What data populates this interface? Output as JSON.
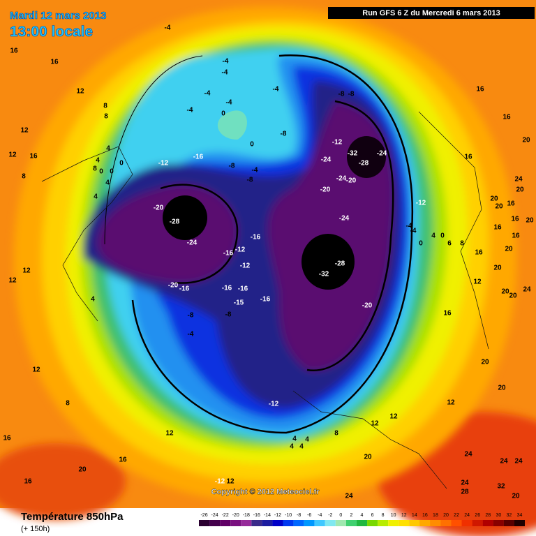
{
  "header": {
    "date": "Mardi 12 mars 2013",
    "time": "13:00 locale",
    "run": "Run GFS 6 Z du Mercredi 6 mars 2013"
  },
  "copyright": "Copyright © 2012 Meteociel.fr",
  "footer": {
    "title": "Température 850hPa",
    "lead": "(+ 150h)"
  },
  "colorbar": {
    "ticks": [
      -26,
      -24,
      -22,
      -20,
      -18,
      -16,
      -14,
      -12,
      -10,
      -8,
      -6,
      -4,
      -2,
      0,
      2,
      4,
      6,
      8,
      10,
      12,
      14,
      16,
      18,
      20,
      22,
      24,
      26,
      28,
      30,
      32,
      34
    ],
    "colors": [
      "#2a0030",
      "#44004c",
      "#600066",
      "#7a1080",
      "#962a9a",
      "#3a2a8a",
      "#1c1ca0",
      "#0000c8",
      "#0038f0",
      "#0068ff",
      "#0098ff",
      "#40c8ff",
      "#80e8f0",
      "#a0e8b0",
      "#40d070",
      "#20b840",
      "#78d800",
      "#b8ec00",
      "#f0f000",
      "#ffe000",
      "#ffc800",
      "#ffa800",
      "#ff8c00",
      "#ff7000",
      "#ff5000",
      "#f03000",
      "#d01800",
      "#b00000",
      "#880000",
      "#580000",
      "#200000"
    ]
  },
  "contour_labels": [
    16,
    16,
    12,
    8,
    8,
    12,
    12,
    16,
    4,
    4,
    8,
    0,
    0,
    4,
    0,
    8,
    4,
    12,
    12,
    4,
    8,
    12,
    16,
    16,
    16,
    20,
    12,
    -12,
    12,
    -4,
    -4,
    -4,
    -4,
    -4,
    0,
    -4,
    -4,
    0,
    -8,
    -8,
    -4,
    -8,
    -8,
    -8,
    -12,
    -32,
    -24,
    -28,
    -24,
    -20,
    -24,
    -20,
    -12,
    -24,
    -4,
    -4,
    0,
    4,
    0,
    6,
    8,
    -28,
    -32,
    -20,
    -16,
    -12,
    -20,
    -28,
    -24,
    -12,
    -16,
    -16,
    -12,
    -20,
    -16,
    -16,
    -16,
    -15,
    -16,
    -8,
    -8,
    -4,
    -12,
    16,
    16,
    20,
    16,
    20,
    24,
    20,
    16,
    20,
    16,
    20,
    16,
    16,
    20,
    16,
    20,
    12,
    20,
    20,
    24,
    16,
    20,
    20,
    12,
    12,
    12,
    8,
    4,
    4,
    4,
    4,
    20,
    24,
    24,
    24,
    24,
    28,
    32,
    24,
    20
  ]
}
